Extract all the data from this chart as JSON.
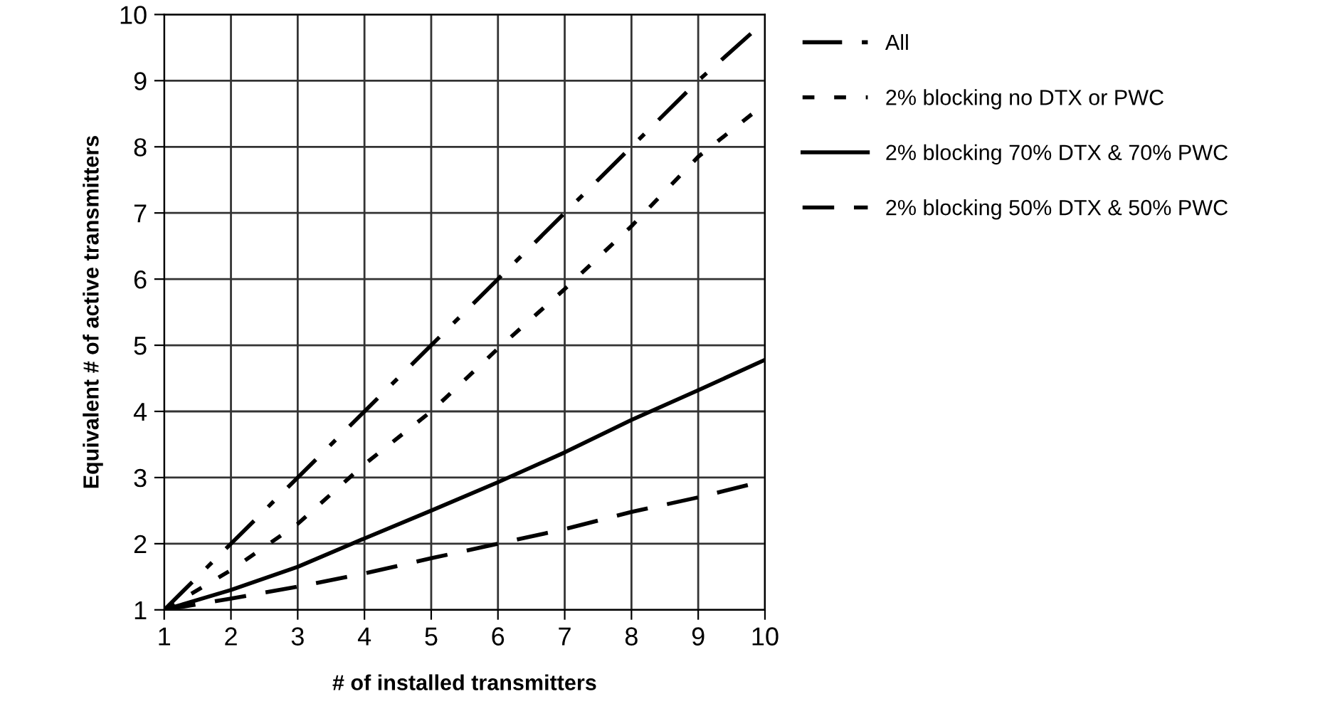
{
  "chart_data": {
    "type": "line",
    "xlabel": "# of installed transmitters",
    "ylabel": "Equivalent # of active transmitters",
    "x": [
      1,
      2,
      3,
      4,
      5,
      6,
      7,
      8,
      9,
      10
    ],
    "series": [
      {
        "name": "All",
        "color": "#000000",
        "line_style": "dashdot",
        "values": [
          1,
          2,
          3,
          4,
          5,
          6,
          7,
          8,
          9,
          9.9
        ]
      },
      {
        "name": "2% blocking no DTX or PWC",
        "color": "#000000",
        "line_style": "dotted",
        "values": [
          1,
          1.6,
          2.3,
          3.2,
          4.0,
          4.95,
          5.85,
          6.8,
          7.85,
          8.65
        ]
      },
      {
        "name": "2% blocking 70% DTX & 70% PWC",
        "color": "#000000",
        "line_style": "solid",
        "values": [
          1,
          1.3,
          1.65,
          2.08,
          2.5,
          2.93,
          3.38,
          3.87,
          4.32,
          4.78
        ]
      },
      {
        "name": "2% blocking 50% DTX & 50% PWC",
        "color": "#000000",
        "line_style": "dashed",
        "values": [
          1,
          1.17,
          1.35,
          1.55,
          1.78,
          2.0,
          2.22,
          2.48,
          2.7,
          2.95
        ]
      }
    ],
    "xlim": [
      1,
      10
    ],
    "xticks": [
      1,
      2,
      3,
      4,
      5,
      6,
      7,
      8,
      9,
      10
    ],
    "ylim": [
      1,
      10
    ],
    "yticks": [
      1,
      2,
      3,
      4,
      5,
      6,
      7,
      8,
      9,
      10
    ],
    "grid": true,
    "legend": "right"
  }
}
